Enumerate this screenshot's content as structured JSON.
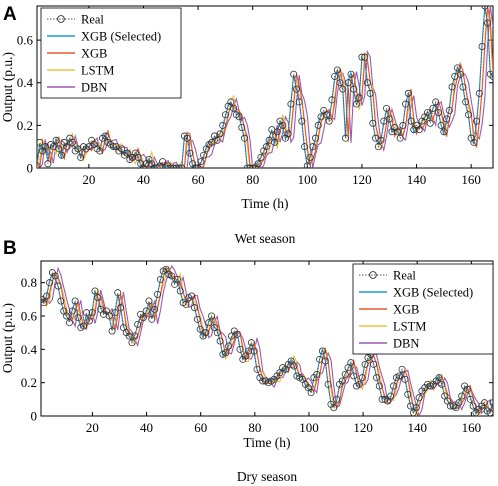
{
  "chart_data": [
    {
      "type": "line",
      "panel": "A",
      "caption": "Wet season",
      "xlabel": "Time (h)",
      "ylabel": "Output (p.u.)",
      "xlim": [
        1,
        168
      ],
      "ylim": [
        0,
        0.76
      ],
      "xticks": [
        20,
        40,
        60,
        80,
        100,
        120,
        140,
        160
      ],
      "yticks": [
        0,
        0.2,
        0.4,
        0.6
      ],
      "grid": false,
      "legend": "top-left",
      "colors": {
        "Real": "#555555",
        "XGB (Selected)": "#1f9ad0",
        "XGB": "#e8562a",
        "LSTM": "#f0c040",
        "DBN": "#9b59b6"
      },
      "series": [
        {
          "name": "Real",
          "values": [
            0.01,
            0.12,
            0.08,
            0.1,
            0.02,
            0.11,
            0.1,
            0.13,
            0.09,
            0.06,
            0.12,
            0.1,
            0.14,
            0.12,
            0.08,
            0.09,
            0.05,
            0.1,
            0.09,
            0.1,
            0.13,
            0.11,
            0.09,
            0.08,
            0.14,
            0.15,
            0.12,
            0.11,
            0.1,
            0.1,
            0.08,
            0.09,
            0.06,
            0.07,
            0.04,
            0.05,
            0.07,
            0.05,
            0.02,
            0.0,
            0.02,
            0.04,
            0.02,
            0.0,
            0.0,
            0.01,
            0.03,
            0.0,
            0.01,
            0.0,
            0.0,
            0.0,
            0.0,
            0.0,
            0.15,
            0.14,
            0.07,
            0.02,
            0.0,
            0.0,
            0.03,
            0.06,
            0.09,
            0.11,
            0.12,
            0.15,
            0.13,
            0.16,
            0.2,
            0.25,
            0.29,
            0.31,
            0.28,
            0.25,
            0.24,
            0.19,
            0.14,
            0.0,
            0.0,
            0.0,
            0.0,
            0.02,
            0.05,
            0.08,
            0.1,
            0.13,
            0.18,
            0.12,
            0.17,
            0.22,
            0.2,
            0.14,
            0.16,
            0.3,
            0.44,
            0.37,
            0.31,
            0.22,
            0.1,
            0.01,
            0.05,
            0.1,
            0.14,
            0.2,
            0.24,
            0.27,
            0.25,
            0.22,
            0.32,
            0.43,
            0.46,
            0.4,
            0.37,
            0.14,
            0.4,
            0.44,
            0.37,
            0.3,
            0.33,
            0.52,
            0.52,
            0.4,
            0.35,
            0.21,
            0.14,
            0.1,
            0.13,
            0.22,
            0.28,
            0.23,
            0.17,
            0.19,
            0.17,
            0.14,
            0.2,
            0.3,
            0.35,
            0.22,
            0.18,
            0.2,
            0.18,
            0.22,
            0.24,
            0.26,
            0.21,
            0.28,
            0.31,
            0.26,
            0.2,
            0.17,
            0.23,
            0.27,
            0.38,
            0.43,
            0.47,
            0.44,
            0.38,
            0.31,
            0.25,
            0.14,
            0.12,
            0.22,
            0.35,
            0.57,
            0.76,
            0.68,
            0.44,
            0.43
          ]
        }
      ]
    },
    {
      "type": "line",
      "panel": "B",
      "caption": "Dry season",
      "xlabel": "Time (h)",
      "ylabel": "Output (p.u.)",
      "xlim": [
        1,
        168
      ],
      "ylim": [
        0,
        0.93
      ],
      "xticks": [
        20,
        40,
        60,
        80,
        100,
        120,
        140,
        160
      ],
      "yticks": [
        0,
        0.2,
        0.4,
        0.6,
        0.8
      ],
      "grid": false,
      "legend": "top-right",
      "colors": {
        "Real": "#555555",
        "XGB (Selected)": "#1f9ad0",
        "XGB": "#e8562a",
        "LSTM": "#f0c040",
        "DBN": "#9b59b6"
      },
      "series": [
        {
          "name": "Real",
          "values": [
            0.7,
            0.68,
            0.72,
            0.8,
            0.86,
            0.84,
            0.78,
            0.69,
            0.63,
            0.6,
            0.56,
            0.63,
            0.69,
            0.59,
            0.53,
            0.54,
            0.62,
            0.57,
            0.62,
            0.75,
            0.71,
            0.64,
            0.61,
            0.63,
            0.6,
            0.51,
            0.62,
            0.74,
            0.65,
            0.53,
            0.5,
            0.48,
            0.44,
            0.48,
            0.55,
            0.61,
            0.59,
            0.63,
            0.69,
            0.58,
            0.64,
            0.73,
            0.82,
            0.87,
            0.88,
            0.85,
            0.84,
            0.79,
            0.82,
            0.75,
            0.68,
            0.67,
            0.71,
            0.72,
            0.65,
            0.58,
            0.52,
            0.48,
            0.5,
            0.56,
            0.6,
            0.53,
            0.5,
            0.45,
            0.37,
            0.38,
            0.42,
            0.48,
            0.51,
            0.49,
            0.4,
            0.34,
            0.36,
            0.39,
            0.44,
            0.39,
            0.28,
            0.23,
            0.21,
            0.21,
            0.2,
            0.21,
            0.22,
            0.24,
            0.26,
            0.29,
            0.28,
            0.31,
            0.33,
            0.3,
            0.24,
            0.23,
            0.22,
            0.19,
            0.17,
            0.14,
            0.23,
            0.25,
            0.34,
            0.39,
            0.33,
            0.19,
            0.07,
            0.05,
            0.1,
            0.19,
            0.21,
            0.25,
            0.29,
            0.32,
            0.24,
            0.18,
            0.19,
            0.23,
            0.31,
            0.35,
            0.37,
            0.31,
            0.23,
            0.18,
            0.1,
            0.1,
            0.09,
            0.12,
            0.18,
            0.23,
            0.24,
            0.28,
            0.22,
            0.13,
            0.06,
            0.02,
            0.05,
            0.11,
            0.15,
            0.17,
            0.19,
            0.18,
            0.19,
            0.21,
            0.23,
            0.19,
            0.12,
            0.09,
            0.06,
            0.06,
            0.05,
            0.08,
            0.12,
            0.18,
            0.16,
            0.1,
            0.06,
            0.02,
            0.04,
            0.06,
            0.08,
            0.03,
            0.02,
            0.08
          ]
        }
      ]
    }
  ]
}
